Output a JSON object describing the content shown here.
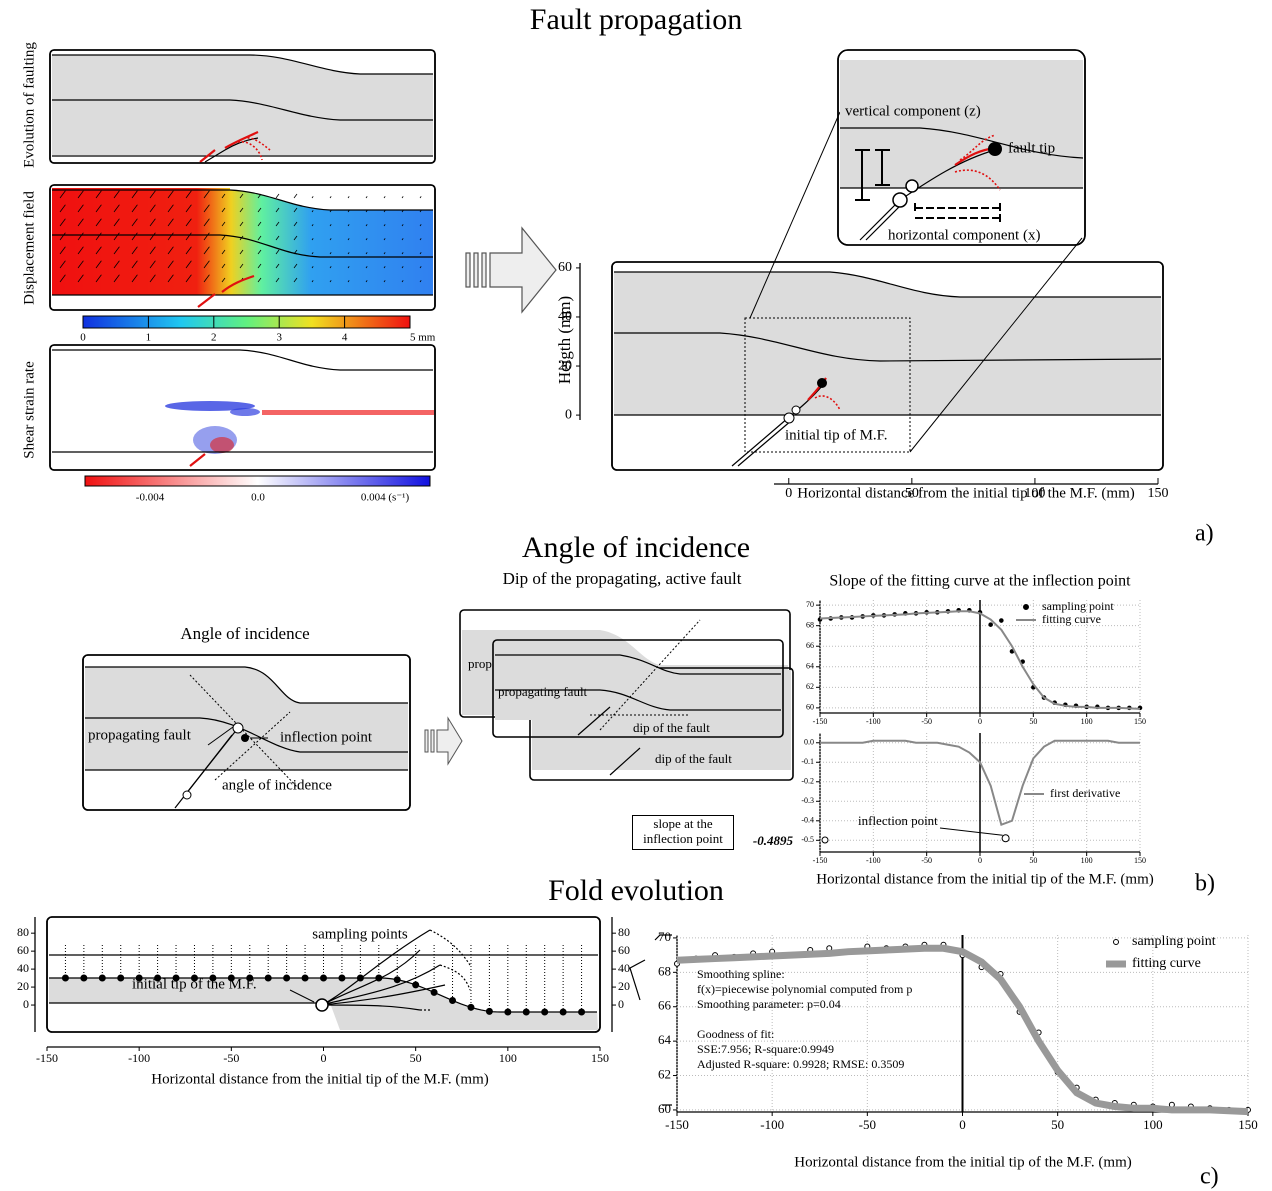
{
  "fault_propagation": {
    "title": "Fault propagation",
    "side_labels": [
      "Evolution of faulting",
      "Displacement field",
      "Shear strain rate"
    ],
    "displacement_colorbar": [
      "0",
      "1",
      "2",
      "3",
      "4",
      "5 mm"
    ],
    "strain_colorbar": [
      "-0.004",
      "0.0",
      "0.004 (s⁻¹)"
    ],
    "inset_labels": {
      "vertical": "vertical component (z)",
      "tip": "fault tip",
      "horizontal": "horizontal component (x)"
    },
    "section": {
      "type": "cross-section",
      "ylabel": "Heigth  (mm)",
      "xlabel": "Horizontal distance from the initial tip of the M.F. (mm)",
      "xlim": [
        -6,
        150
      ],
      "xticks": [
        0,
        50,
        100,
        150
      ],
      "ylim": [
        -2,
        62
      ],
      "yticks": [
        0,
        20,
        40,
        60
      ],
      "annotation": "initial tip of M.F."
    },
    "panel_letter": "a)"
  },
  "angle_of_incidence": {
    "title": "Angle of incidence",
    "sketch": {
      "title": "Angle of incidence",
      "labels": {
        "fault": "propagating fault",
        "inflection": "inflection point",
        "angle": "angle of incidence"
      }
    },
    "stack": {
      "title": "Dip of the propagating, active fault",
      "back_label": "prop",
      "fault": "propagating fault",
      "dip": "dip of the fault",
      "dip_lower": "dip of the fault"
    },
    "slope_chart": {
      "type": "line",
      "title": "Slope of the fitting curve at the inflection point",
      "x": [
        -150,
        -140,
        -130,
        -120,
        -110,
        -100,
        -90,
        -80,
        -70,
        -60,
        -50,
        -40,
        -30,
        -20,
        -10,
        0,
        10,
        20,
        30,
        40,
        50,
        60,
        70,
        80,
        90,
        100,
        110,
        120,
        130,
        140,
        150
      ],
      "xlim": [
        -150,
        150
      ],
      "xticks": [
        -150,
        -100,
        -50,
        0,
        50,
        100,
        150
      ],
      "ylim": [
        59.5,
        70.5
      ],
      "yticks": [
        60,
        62,
        64,
        66,
        68,
        70
      ],
      "grid": true,
      "series": [
        {
          "name": "sampling point",
          "type": "scatter",
          "marker": "filled",
          "color": "#000000",
          "values": [
            68.6,
            68.7,
            68.8,
            68.8,
            68.9,
            69.0,
            69.0,
            69.1,
            69.2,
            69.2,
            69.3,
            69.3,
            69.4,
            69.5,
            69.5,
            69.3,
            68.1,
            68.5,
            65.5,
            64.5,
            62.0,
            61.0,
            60.5,
            60.3,
            60.2,
            60.1,
            60.1,
            60.0,
            60.0,
            60.0,
            60.0
          ]
        },
        {
          "name": "fitting curve",
          "type": "line",
          "color": "#888888",
          "values": [
            68.7,
            68.75,
            68.8,
            68.85,
            68.9,
            68.95,
            69.0,
            69.05,
            69.1,
            69.2,
            69.25,
            69.3,
            69.35,
            69.4,
            69.4,
            69.2,
            68.6,
            67.6,
            66.0,
            64.0,
            62.3,
            61.0,
            60.4,
            60.2,
            60.1,
            60.1,
            60.0,
            60.0,
            60.0,
            59.95,
            59.9
          ]
        }
      ]
    },
    "derivative_chart": {
      "type": "line",
      "x": [
        -150,
        -140,
        -130,
        -120,
        -110,
        -100,
        -90,
        -80,
        -70,
        -60,
        -50,
        -40,
        -30,
        -20,
        -10,
        0,
        10,
        20,
        30,
        40,
        50,
        60,
        70,
        80,
        90,
        100,
        110,
        120,
        130,
        140,
        150
      ],
      "xlim": [
        -150,
        150
      ],
      "xticks": [
        -150,
        -100,
        -50,
        0,
        50,
        100,
        150
      ],
      "ylim": [
        -0.56,
        0.05
      ],
      "yticks": [
        {
          "value": 0,
          "label": "0.0"
        },
        -0.1,
        -0.2,
        -0.3,
        -0.4,
        -0.5
      ],
      "grid": true,
      "series": [
        {
          "name": "first derivative",
          "type": "line",
          "color": "#888888",
          "values": [
            0,
            0,
            0,
            0,
            0,
            0.01,
            0.01,
            0.01,
            0.01,
            0,
            0,
            0,
            -0.01,
            -0.02,
            -0.05,
            -0.1,
            -0.22,
            -0.42,
            -0.4,
            -0.22,
            -0.08,
            -0.02,
            0.01,
            0.01,
            0.01,
            0.01,
            0.01,
            0.01,
            0,
            0,
            0
          ]
        }
      ],
      "inflection_label": "inflection point",
      "inflection_x": 24,
      "inflection_value": -0.4895,
      "slope_label": "slope at the inflection point",
      "xlabel": "Horizontal distance from the initial tip of the M.F. (mm)"
    },
    "panel_letter": "b)"
  },
  "fold_evolution": {
    "title": "Fold evolution",
    "section": {
      "type": "cross-section",
      "xlim": [
        -150,
        150
      ],
      "xticks": [
        -150,
        -100,
        -50,
        0,
        50,
        100,
        150
      ],
      "ylim": [
        -30,
        98
      ],
      "yticks": [
        0,
        20,
        40,
        60,
        80
      ],
      "sampling_label": "sampling points",
      "annotation": "initial tip of the M.F.",
      "xlabel": "Horizontal distance from the initial tip of the M.F. (mm)"
    },
    "fit_chart": {
      "type": "line",
      "x": [
        -150,
        -140,
        -130,
        -120,
        -110,
        -100,
        -90,
        -80,
        -70,
        -60,
        -50,
        -40,
        -30,
        -20,
        -10,
        0,
        10,
        20,
        30,
        40,
        50,
        60,
        70,
        80,
        90,
        100,
        110,
        120,
        130,
        140,
        150
      ],
      "xlim": [
        -150,
        150
      ],
      "xticks": [
        -150,
        -100,
        -50,
        0,
        50,
        100,
        150
      ],
      "ylim": [
        59.88,
        70.17
      ],
      "yticks": [
        60,
        62,
        64,
        66,
        68,
        70
      ],
      "grid": true,
      "series": [
        {
          "name": "sampling point",
          "type": "scatter",
          "marker": "open",
          "color": "#000000",
          "values": [
            68.5,
            68.8,
            69.0,
            68.9,
            69.1,
            69.2,
            69.0,
            69.3,
            69.4,
            69.2,
            69.5,
            69.4,
            69.5,
            69.6,
            69.6,
            69.0,
            68.3,
            67.9,
            65.7,
            64.5,
            62.2,
            61.3,
            60.6,
            60.4,
            60.3,
            60.2,
            60.3,
            60.2,
            60.1,
            60.0,
            60.0
          ]
        },
        {
          "name": "fitting curve",
          "type": "line",
          "color": "#999999",
          "values": [
            68.7,
            68.75,
            68.8,
            68.85,
            68.9,
            68.95,
            69.0,
            69.05,
            69.1,
            69.2,
            69.25,
            69.3,
            69.35,
            69.4,
            69.4,
            69.2,
            68.6,
            67.6,
            66.0,
            64.0,
            62.3,
            61.0,
            60.4,
            60.2,
            60.1,
            60.1,
            60.0,
            60.0,
            60.0,
            59.95,
            59.9
          ]
        }
      ],
      "notes": [
        "Smoothing spline:",
        "f(x)=piecewise polynomial computed from p",
        "Smoothing parameter: p=0.04",
        "Goodness of fit:",
        "SSE:7.956; R-square:0.9949",
        "Adjusted R-square: 0.9928; RMSE: 0.3509"
      ],
      "xlabel": "Horizontal distance from the initial tip of the M.F. (mm)"
    },
    "panel_letter": "c)"
  }
}
